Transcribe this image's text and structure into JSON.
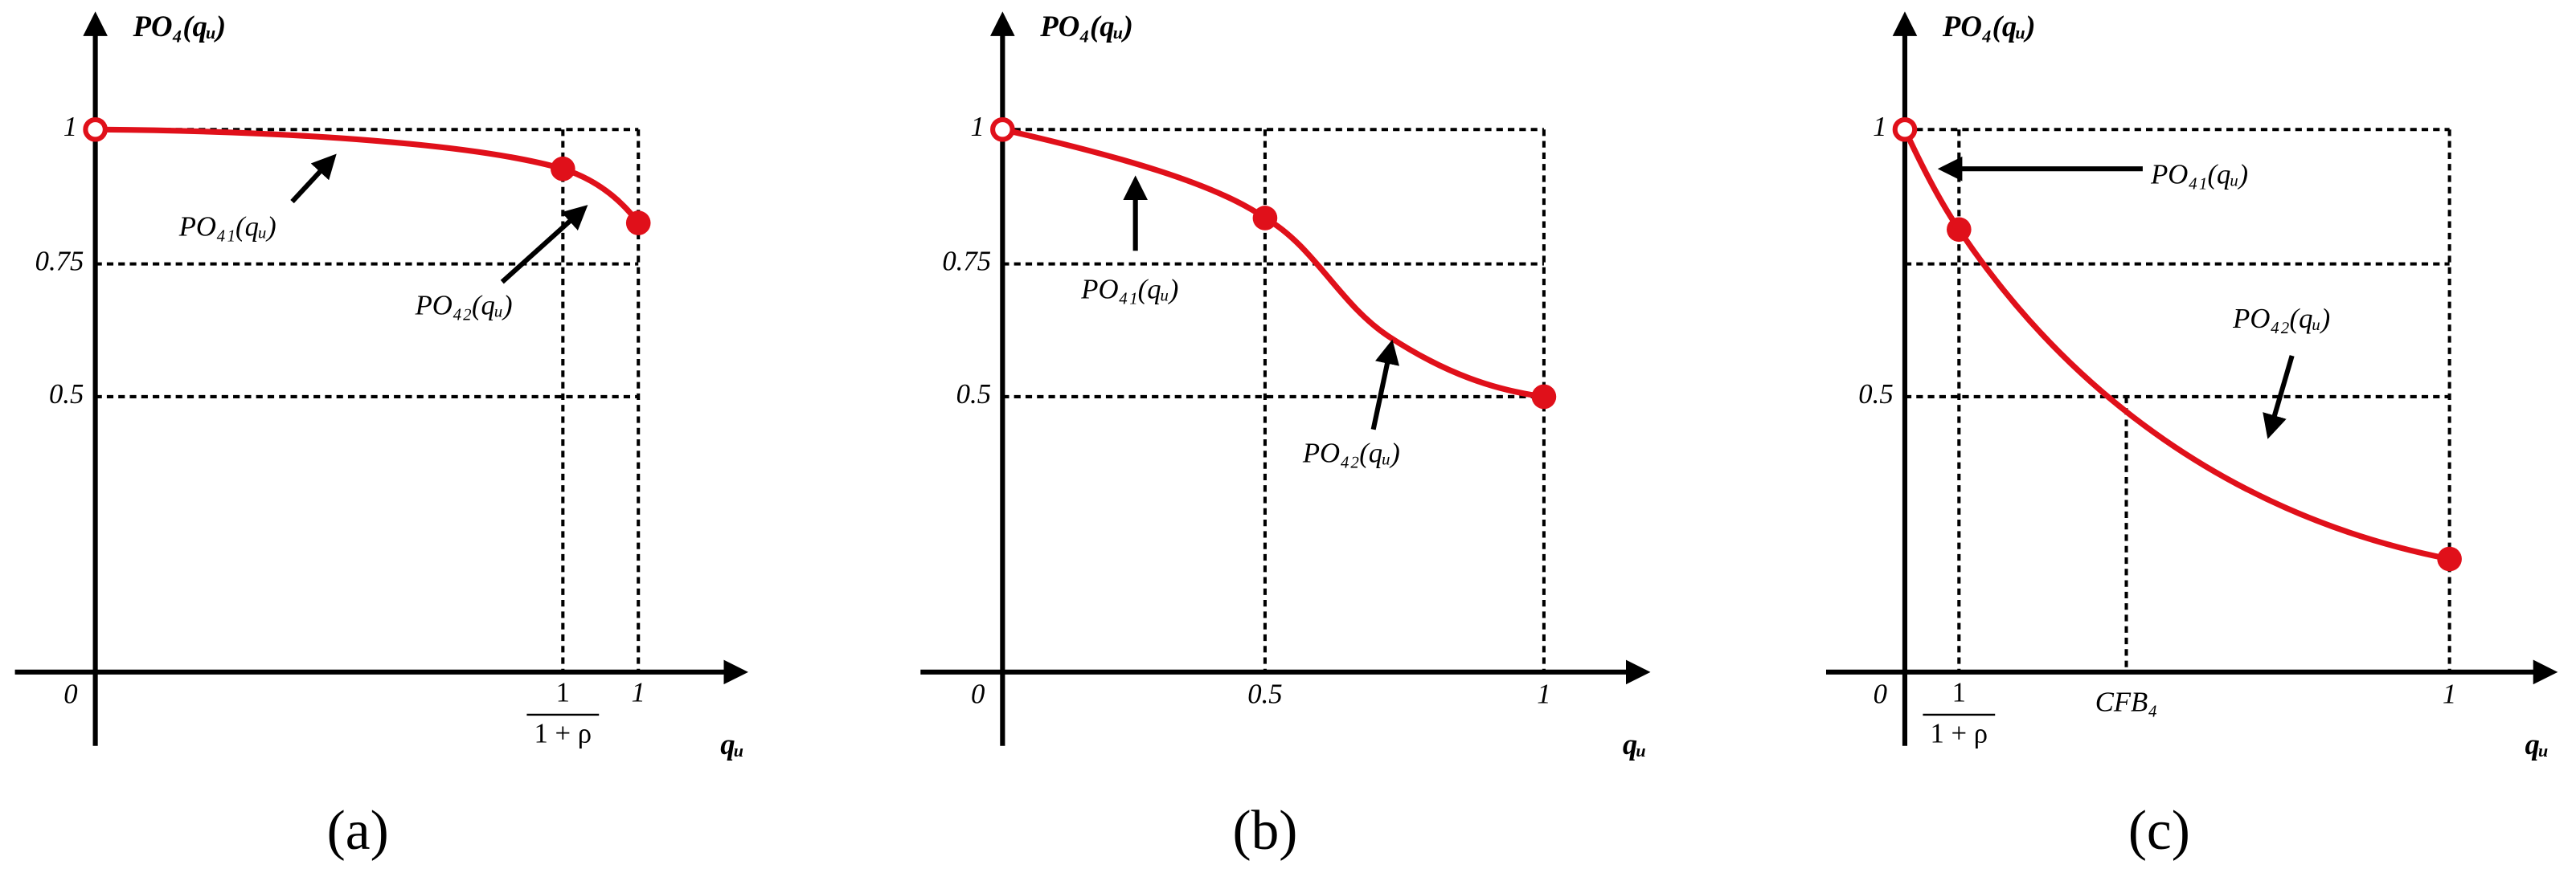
{
  "panels": [
    {
      "y_axis_title": "PO₄(qᵤ)",
      "x_axis_title": "qᵤ",
      "origin": "0",
      "y_ticks": [
        "1",
        "0.75",
        "0.5"
      ],
      "x_ticks": [
        {
          "numerator": "1",
          "denominator": "1 + ρ"
        },
        "1"
      ],
      "curve_labels": [
        "PO₄₁(qᵤ)",
        "PO₄₂(qᵤ)"
      ],
      "caption": "(a)"
    },
    {
      "y_axis_title": "PO₄(qᵤ)",
      "x_axis_title": "qᵤ",
      "origin": "0",
      "y_ticks": [
        "1",
        "0.75",
        "0.5"
      ],
      "x_ticks": [
        "0.5",
        "1"
      ],
      "curve_labels": [
        "PO₄₁(qᵤ)",
        "PO₄₂(qᵤ)"
      ],
      "caption": "(b)"
    },
    {
      "y_axis_title": "PO₄(qᵤ)",
      "x_axis_title": "qᵤ",
      "origin": "0",
      "y_ticks": [
        "1",
        "0.5"
      ],
      "x_ticks": [
        {
          "numerator": "1",
          "denominator": "1 + ρ"
        },
        "CFB₄",
        "1"
      ],
      "curve_labels": [
        "PO₄₁(qᵤ)",
        "PO₄₂(qᵤ)"
      ],
      "caption": "(c)"
    }
  ]
}
